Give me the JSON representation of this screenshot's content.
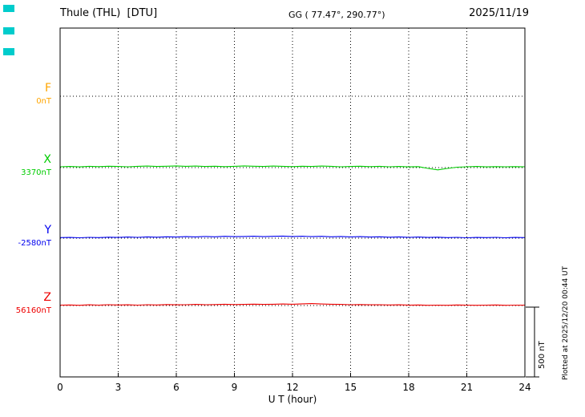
{
  "ui": {
    "marker_color": "#00CCCC"
  },
  "chart_data": {
    "type": "line",
    "title": "Thule (THL)  [DTU]",
    "station_coords": "GG ( 77.47°, 290.77°)",
    "date": "2025/11/19",
    "xlabel": "U T (hour)",
    "x_range": [
      0,
      24
    ],
    "x_ticks": [
      0,
      3,
      6,
      9,
      12,
      15,
      18,
      21,
      24
    ],
    "grid": "vertical-dotted",
    "scale_bar": {
      "label": "500 nT",
      "nT": 500
    },
    "plotted_at": "Plotted at 2025/12/20 00:44 UT",
    "series": [
      {
        "name": "F",
        "baseline_label": "0nT",
        "baseline_nT": 0,
        "color": "#FFA500",
        "draw": false,
        "values": [
          0,
          0,
          0,
          0,
          0,
          0,
          0,
          0,
          0,
          0,
          0,
          0,
          0,
          0,
          0,
          0,
          0,
          0,
          0,
          0,
          0,
          0,
          0,
          0,
          0,
          0,
          0,
          0,
          0,
          0,
          0,
          0,
          0,
          0,
          0,
          0,
          0,
          0,
          0,
          0,
          0,
          0,
          0,
          0,
          0,
          0,
          0,
          0,
          0
        ]
      },
      {
        "name": "X",
        "baseline_label": "3370nT",
        "baseline_nT": 3370,
        "color": "#00CC00",
        "draw": true,
        "values": [
          6,
          8,
          5,
          9,
          7,
          10,
          8,
          6,
          9,
          11,
          8,
          10,
          12,
          9,
          11,
          8,
          10,
          7,
          9,
          12,
          10,
          8,
          11,
          9,
          7,
          10,
          8,
          11,
          9,
          6,
          8,
          10,
          7,
          9,
          6,
          8,
          5,
          7,
          -6,
          -16,
          -6,
          3,
          6,
          8,
          5,
          7,
          6,
          7,
          6
        ]
      },
      {
        "name": "Y",
        "baseline_label": "-2580nT",
        "baseline_nT": -2580,
        "color": "#0000EE",
        "draw": true,
        "values": [
          4,
          5,
          3,
          6,
          4,
          7,
          5,
          8,
          6,
          9,
          7,
          10,
          8,
          11,
          9,
          12,
          10,
          13,
          11,
          12,
          14,
          11,
          13,
          15,
          12,
          14,
          11,
          13,
          10,
          12,
          9,
          11,
          8,
          10,
          7,
          9,
          6,
          8,
          5,
          7,
          4,
          6,
          3,
          5,
          4,
          6,
          3,
          5,
          4
        ]
      },
      {
        "name": "Z",
        "baseline_label": "56160nT",
        "baseline_nT": 56160,
        "color": "#EE0000",
        "draw": true,
        "values": [
          3,
          4,
          2,
          5,
          3,
          6,
          4,
          5,
          3,
          6,
          4,
          7,
          5,
          6,
          8,
          6,
          7,
          9,
          7,
          8,
          10,
          8,
          9,
          11,
          9,
          12,
          14,
          11,
          9,
          8,
          6,
          7,
          5,
          6,
          4,
          5,
          3,
          4,
          2,
          3,
          2,
          4,
          3,
          2,
          3,
          4,
          2,
          3,
          3
        ]
      }
    ]
  }
}
